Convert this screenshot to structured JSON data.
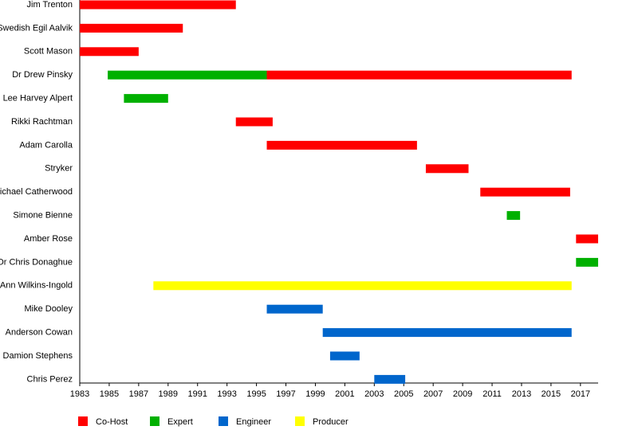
{
  "chart_data": {
    "type": "timeline",
    "categories": [
      "Jim Trenton",
      "Swedish Egil Aalvik",
      "Scott Mason",
      "Dr Drew Pinsky",
      "Lee Harvey Alpert",
      "Rikki Rachtman",
      "Adam Carolla",
      "Stryker",
      "Michael Catherwood",
      "Simone Bienne",
      "Amber Rose",
      "Dr Chris Donaghue",
      "Ann Wilkins-Ingold",
      "Mike Dooley",
      "Anderson Cowan",
      "Damion Stephens",
      "Chris Perez"
    ],
    "series": [
      {
        "name": "Co-Host",
        "color": "#ff0000",
        "start": [
          1983,
          1983,
          1983,
          1995.7,
          null,
          1993.6,
          1995.7,
          2006.5,
          2010.2,
          null,
          2016.7,
          null,
          null,
          null,
          null,
          null,
          null
        ],
        "end": [
          1993.6,
          1990,
          1987,
          2016.4,
          null,
          1996.1,
          2005.9,
          2009.4,
          2016.3,
          null,
          2018.2,
          null,
          null,
          null,
          null,
          null,
          null
        ]
      },
      {
        "name": "Expert",
        "color": "#00b000",
        "start": [
          null,
          null,
          null,
          1984.9,
          1986,
          null,
          null,
          null,
          null,
          2012,
          null,
          2016.7,
          null,
          null,
          null,
          null,
          null
        ],
        "end": [
          null,
          null,
          null,
          1995.7,
          1989,
          null,
          null,
          null,
          null,
          2012.9,
          null,
          2018.2,
          null,
          null,
          null,
          null,
          null
        ]
      },
      {
        "name": "Engineer",
        "color": "#0066cc",
        "start": [
          null,
          null,
          null,
          null,
          null,
          null,
          null,
          null,
          null,
          null,
          null,
          null,
          null,
          1995.7,
          1999.5,
          2000,
          2003
        ],
        "end": [
          null,
          null,
          null,
          null,
          null,
          null,
          null,
          null,
          null,
          null,
          null,
          null,
          null,
          1999.5,
          2016.4,
          2002,
          2005.1
        ]
      },
      {
        "name": "Producer",
        "color": "#ffff00",
        "start": [
          null,
          null,
          null,
          null,
          null,
          null,
          null,
          null,
          null,
          null,
          null,
          null,
          1988,
          null,
          null,
          null,
          null
        ],
        "end": [
          null,
          null,
          null,
          null,
          null,
          null,
          null,
          null,
          null,
          null,
          null,
          null,
          2016.4,
          null,
          null,
          null,
          null
        ]
      }
    ],
    "xlim": [
      1983,
      2018.2
    ],
    "xticks": [
      1983,
      1985,
      1987,
      1989,
      1991,
      1993,
      1995,
      1997,
      1999,
      2001,
      2003,
      2005,
      2007,
      2009,
      2011,
      2013,
      2015,
      2017
    ]
  }
}
